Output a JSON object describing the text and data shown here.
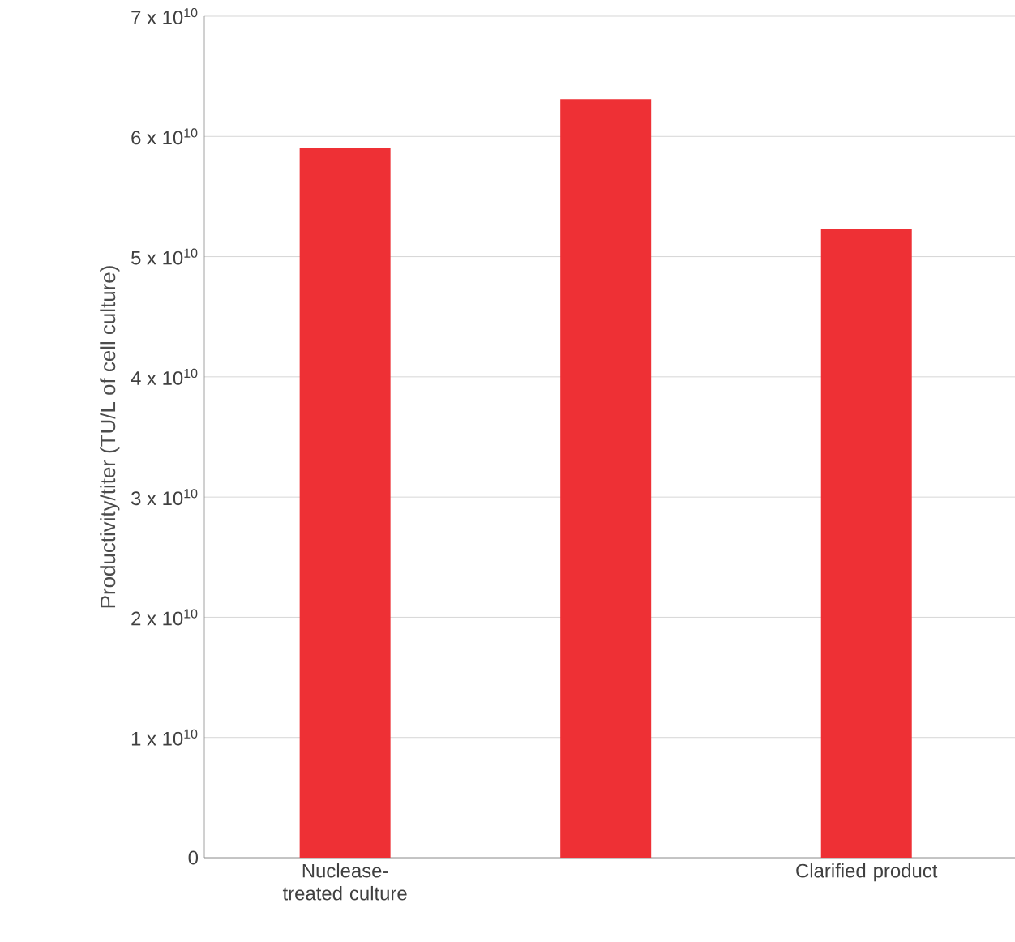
{
  "chart_data": {
    "type": "bar",
    "ylabel": "Productivity/titer (TU/L of cell culture)",
    "categories": [
      "Nuclease-treated culture",
      null,
      "Clarified product"
    ],
    "values": [
      59000000000.0,
      63100000000.0,
      52300000000.0
    ],
    "color": "#ee3035",
    "ylim": [
      0,
      70000000000.0
    ],
    "yticks": [
      {
        "value": 0,
        "label": "0"
      },
      {
        "value": 10000000000.0,
        "label": "1 x 10$^{10}$"
      },
      {
        "value": 20000000000.0,
        "label": "2 x 10$^{10}$"
      },
      {
        "value": 30000000000.0,
        "label": "3 x 10$^{10}$"
      },
      {
        "value": 40000000000.0,
        "label": "4 x 10$^{10}$"
      },
      {
        "value": 50000000000.0,
        "label": "5 x 10$^{10}$"
      },
      {
        "value": 60000000000.0,
        "label": "6 x 10$^{10}$"
      },
      {
        "value": 70000000000.0,
        "label": "7 x 10$^{10}$"
      }
    ],
    "grid": "y"
  }
}
